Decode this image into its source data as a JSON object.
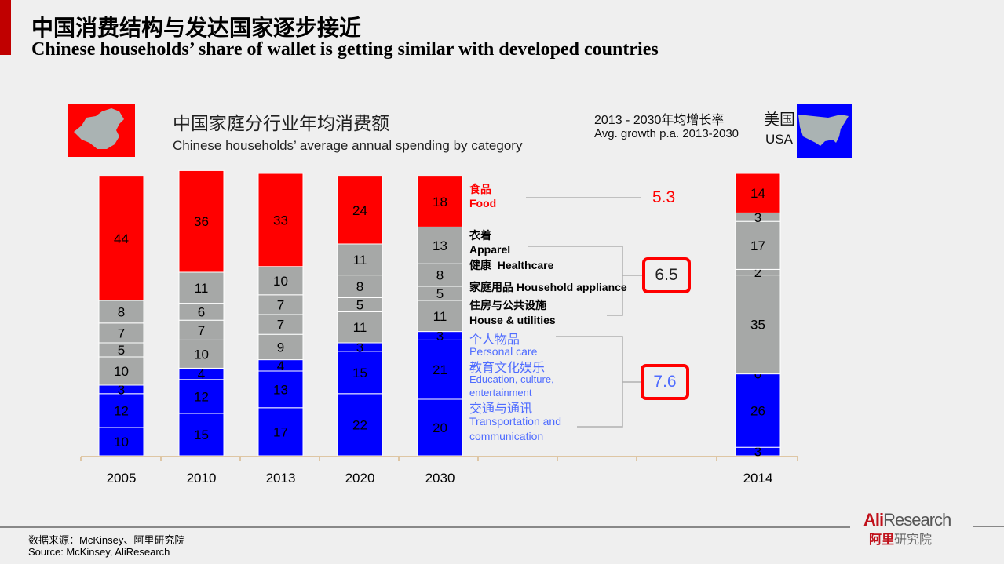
{
  "header": {
    "title_cn": "中国消费结构与发达国家逐步接近",
    "title_en": "Chinese households’ share of wallet is getting similar with developed countries"
  },
  "chart_data": {
    "type": "bar",
    "stacked": true,
    "title_cn": "中国家庭分行业年均消费额",
    "title": "Chinese households’ average annual spending by category",
    "categories": [
      "2005",
      "2010",
      "2013",
      "2020",
      "2030",
      "2014"
    ],
    "country_label": {
      "cn": "美国",
      "en": "USA"
    },
    "growth_header": {
      "cn": "2013 - 2030年均增长率",
      "en": "Avg. growth p.a. 2013-2030"
    },
    "series": [
      {
        "name": "交通与通讯 Transportation and communication",
        "cn": "交通与通讯",
        "en": "Transportation and communication",
        "color": "#0000ff",
        "values": [
          10,
          15,
          17,
          22,
          20,
          3
        ]
      },
      {
        "name": "教育文化娱乐 Education, culture, entertainment",
        "cn": "教育文化娱乐",
        "en": "Education, culture, entertainment",
        "color": "#0000ff",
        "values": [
          12,
          12,
          13,
          15,
          21,
          26
        ]
      },
      {
        "name": "个人物品 Personal care",
        "cn": "个人物品",
        "en": "Personal care",
        "color": "#0000ff",
        "values": [
          3,
          4,
          4,
          3,
          3,
          0
        ]
      },
      {
        "name": "住房与公共设施 House & utilities",
        "cn": "住房与公共设施",
        "en": "House & utilities",
        "color": "#a6a8a7",
        "values": [
          10,
          10,
          9,
          11,
          11,
          35
        ]
      },
      {
        "name": "家庭用品 Household appliance",
        "cn": "家庭用品",
        "en": "Household appliance",
        "color": "#a6a8a7",
        "values": [
          5,
          7,
          7,
          5,
          5,
          2
        ]
      },
      {
        "name": "健康 Healthcare",
        "cn": "健康",
        "en": "Healthcare",
        "color": "#a6a8a7",
        "values": [
          7,
          6,
          7,
          8,
          8,
          17
        ]
      },
      {
        "name": "衣着 Apparel",
        "cn": "衣着",
        "en": "Apparel",
        "color": "#a6a8a7",
        "values": [
          8,
          11,
          10,
          11,
          13,
          3
        ]
      },
      {
        "name": "食品 Food",
        "cn": "食品",
        "en": "Food",
        "color": "#ff0000",
        "values": [
          44,
          36,
          33,
          24,
          18,
          14
        ]
      }
    ],
    "growth_rates": [
      {
        "group": "food",
        "value": "5.3",
        "color": "#ff0000"
      },
      {
        "group": "apparel-healthcare-household-house",
        "value": "6.5",
        "color": "#222222"
      },
      {
        "group": "personal-education-transport",
        "value": "7.6",
        "color": "#4f6cff"
      }
    ],
    "legend_placement": "right",
    "grid": false
  },
  "footer": {
    "source_cn": "数据来源：McKinsey、阿里研究院",
    "source_en": "Source: McKinsey, AliResearch",
    "logo_text": "AliResearch",
    "logo_cn": "阿里研究院"
  },
  "colors": {
    "accent": "#c00000",
    "food": "#ff0000",
    "gray": "#a6a8a7",
    "blue": "#0000ff",
    "highlight_box": "#ff0000"
  }
}
